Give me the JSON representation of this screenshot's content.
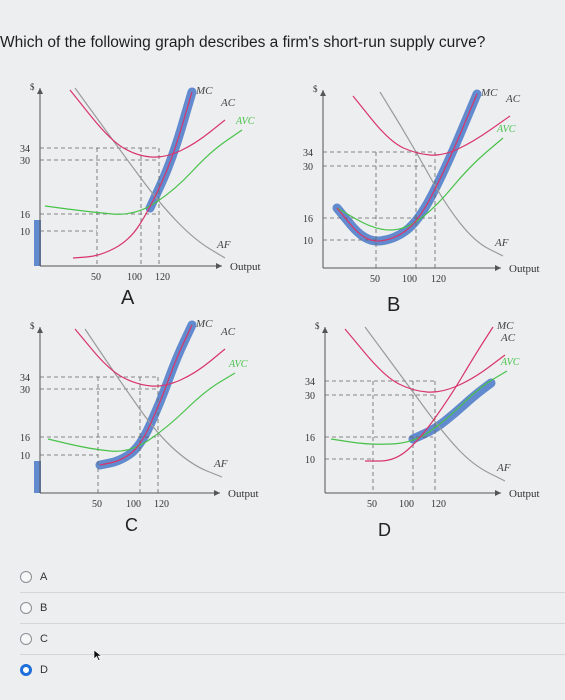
{
  "question": "Which of the following graph describes a firm's short-run supply curve?",
  "panels": {
    "A": {
      "letter": "A",
      "y_axis_symbol": "$",
      "y_ticks": [
        "34",
        "30",
        "16",
        "10"
      ],
      "x_ticks": [
        "50",
        "100",
        "120"
      ],
      "curves": {
        "mc": "MC",
        "ac": "AC",
        "avc": "AVC",
        "af": "AF"
      },
      "x_axis_label": "Output"
    },
    "B": {
      "letter": "B",
      "y_axis_symbol": "$",
      "y_ticks": [
        "34",
        "30",
        "16",
        "10"
      ],
      "x_ticks": [
        "50",
        "100",
        "120"
      ],
      "curves": {
        "mc": "MC",
        "ac": "AC",
        "avc": "AVC",
        "af": "AF"
      },
      "x_axis_label": "Output"
    },
    "C": {
      "letter": "C",
      "y_axis_symbol": "$",
      "y_ticks": [
        "34",
        "30",
        "16",
        "10"
      ],
      "x_ticks": [
        "50",
        "100",
        "120"
      ],
      "curves": {
        "mc": "MC",
        "ac": "AC",
        "avc": "AVC",
        "af": "AF"
      },
      "x_axis_label": "Output"
    },
    "D": {
      "letter": "D",
      "y_axis_symbol": "$",
      "y_ticks": [
        "34",
        "30",
        "16",
        "10"
      ],
      "x_ticks": [
        "50",
        "100",
        "120"
      ],
      "curves": {
        "mc": "MC",
        "ac": "AC",
        "avc": "AVC",
        "af": "AF"
      },
      "x_axis_label": "Output"
    }
  },
  "options": [
    {
      "label": "A",
      "selected": false
    },
    {
      "label": "B",
      "selected": false
    },
    {
      "label": "C",
      "selected": false
    },
    {
      "label": "D",
      "selected": true
    }
  ],
  "colors": {
    "mc": "#d9356b",
    "ac": "#d9356b",
    "avc": "#49c24a",
    "af": "#9a9a9a",
    "supply_highlight": "#4a78c8",
    "radio_selected": "#1e6fd9"
  }
}
